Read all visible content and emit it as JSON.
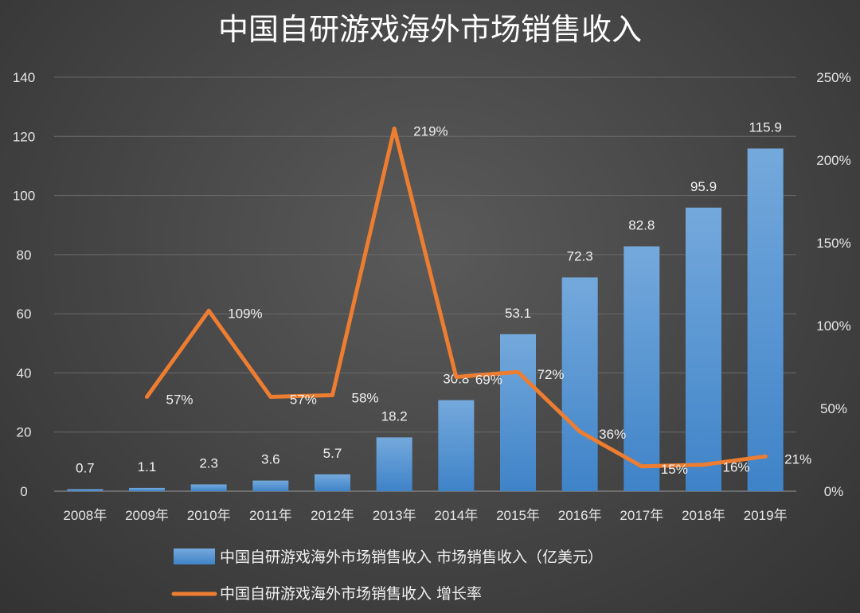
{
  "chart_data": {
    "type": "bar+line",
    "title": "中国自研游戏海外市场销售收入",
    "categories": [
      "2008年",
      "2009年",
      "2010年",
      "2011年",
      "2012年",
      "2013年",
      "2014年",
      "2015年",
      "2016年",
      "2017年",
      "2018年",
      "2019年"
    ],
    "series": [
      {
        "name": "中国自研游戏海外市场销售收入 市场销售收入（亿美元）",
        "type": "bar",
        "axis": "left",
        "color": "#5b9bd5",
        "values": [
          0.7,
          1.1,
          2.3,
          3.6,
          5.7,
          18.2,
          30.8,
          53.1,
          72.3,
          82.8,
          95.9,
          115.9
        ],
        "labels": [
          "0.7",
          "1.1",
          "2.3",
          "3.6",
          "5.7",
          "18.2",
          "30.8",
          "53.1",
          "72.3",
          "82.8",
          "95.9",
          "115.9"
        ]
      },
      {
        "name": "中国自研游戏海外市场销售收入 增长率",
        "type": "line",
        "axis": "right",
        "color": "#ed7d31",
        "values": [
          null,
          57,
          109,
          57,
          58,
          219,
          69,
          72,
          36,
          15,
          16,
          21
        ],
        "labels": [
          "",
          "57%",
          "109%",
          "57%",
          "58%",
          "219%",
          "69%",
          "72%",
          "36%",
          "15%",
          "16%",
          "21%"
        ]
      }
    ],
    "y_left": {
      "ylim": [
        0,
        140
      ],
      "ticks": [
        "0",
        "20",
        "40",
        "60",
        "80",
        "100",
        "120",
        "140"
      ]
    },
    "y_right": {
      "ylim": [
        0,
        250
      ],
      "ticks": [
        "0%",
        "50%",
        "100%",
        "150%",
        "200%",
        "250%"
      ]
    },
    "grid": true,
    "legend": "bottom"
  }
}
